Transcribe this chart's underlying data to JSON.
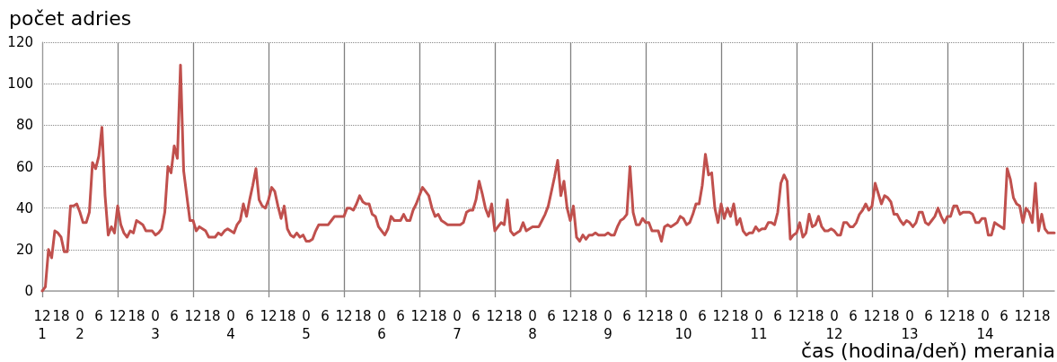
{
  "chart_data": {
    "type": "line",
    "ylabel": "počet adries",
    "xlabel": "čas (hodina/deň) merania",
    "categories": [
      "12\n1",
      null,
      null,
      null,
      null,
      null,
      "18",
      null,
      null,
      null,
      null,
      null,
      "0\n2",
      null,
      null,
      null,
      null,
      null,
      "6",
      null,
      null,
      null,
      null,
      null,
      "12",
      null,
      null,
      null,
      null,
      null,
      "18",
      null,
      null,
      null,
      null,
      null,
      "0\n3",
      null,
      null,
      null,
      null,
      null,
      "6",
      null,
      null,
      null,
      null,
      null,
      "12",
      null,
      null,
      null,
      null,
      null,
      "18",
      null,
      null,
      null,
      null,
      null,
      "0\n4",
      null,
      null,
      null,
      null,
      null,
      "6",
      null,
      null,
      null,
      null,
      null,
      "12",
      null,
      null,
      null,
      null,
      null,
      "18",
      null,
      null,
      null,
      null,
      null,
      "0\n5",
      null,
      null,
      null,
      null,
      null,
      "6",
      null,
      null,
      null,
      null,
      null,
      "12",
      null,
      null,
      null,
      null,
      null,
      "18",
      null,
      null,
      null,
      null,
      null,
      "0\n6",
      null,
      null,
      null,
      null,
      null,
      "6",
      null,
      null,
      null,
      null,
      null,
      "12",
      null,
      null,
      null,
      null,
      null,
      "18",
      null,
      null,
      null,
      null,
      null,
      "0\n7",
      null,
      null,
      null,
      null,
      null,
      "6",
      null,
      null,
      null,
      null,
      null,
      "12",
      null,
      null,
      null,
      null,
      null,
      "18",
      null,
      null,
      null,
      null,
      null,
      "0\n8",
      null,
      null,
      null,
      null,
      null,
      "6",
      null,
      null,
      null,
      null,
      null,
      "12",
      null,
      null,
      null,
      null,
      null,
      "18",
      null,
      null,
      null,
      null,
      null,
      "0\n9",
      null,
      null,
      null,
      null,
      null,
      "6",
      null,
      null,
      null,
      null,
      null,
      "12",
      null,
      null,
      null,
      null,
      null,
      "18",
      null,
      null,
      null,
      null,
      null,
      "0\n10",
      null,
      null,
      null,
      null,
      null,
      "6",
      null,
      null,
      null,
      null,
      null,
      "12",
      null,
      null,
      null,
      null,
      null,
      "18",
      null,
      null,
      null,
      null,
      null,
      "0\n11",
      null,
      null,
      null,
      null,
      null,
      "6",
      null,
      null,
      null,
      null,
      null,
      "12",
      null,
      null,
      null,
      null,
      null,
      "18",
      null,
      null,
      null,
      null,
      null,
      "0\n12",
      null,
      null,
      null,
      null,
      null,
      "6",
      null,
      null,
      null,
      null,
      null,
      "12",
      null,
      null,
      null,
      null,
      null,
      "18",
      null,
      null,
      null,
      null,
      null,
      "0\n13",
      null,
      null,
      null,
      null,
      null,
      "6",
      null,
      null,
      null,
      null,
      null,
      "12",
      null,
      null,
      null,
      null,
      null,
      "18",
      null,
      null,
      null,
      null,
      null,
      "0\n14",
      null,
      null,
      null,
      null,
      null,
      "6",
      null,
      null,
      null,
      null,
      null,
      "12",
      null,
      null,
      null,
      null,
      null,
      "18",
      null,
      null,
      null,
      null
    ],
    "ylim": [
      0,
      120
    ],
    "yticks": [
      0,
      20,
      40,
      60,
      80,
      100,
      120
    ],
    "grid": true,
    "line_style": "solid",
    "marker": "none",
    "series": [
      {
        "color": "#c0504d",
        "values": [
          0,
          2,
          20,
          16,
          29,
          28,
          26,
          19,
          19,
          41,
          41,
          42,
          38,
          33,
          33,
          38,
          62,
          59,
          65,
          79,
          46,
          27,
          31,
          28,
          41,
          32,
          28,
          26,
          29,
          28,
          34,
          33,
          32,
          29,
          29,
          29,
          27,
          28,
          30,
          38,
          60,
          57,
          70,
          64,
          109,
          58,
          46,
          34,
          34,
          29,
          31,
          30,
          29,
          26,
          26,
          26,
          28,
          27,
          29,
          30,
          29,
          28,
          32,
          34,
          42,
          36,
          44,
          51,
          59,
          44,
          41,
          40,
          44,
          50,
          48,
          41,
          35,
          41,
          30,
          27,
          26,
          28,
          26,
          27,
          24,
          24,
          25,
          29,
          32,
          32,
          32,
          32,
          34,
          36,
          36,
          36,
          36,
          40,
          40,
          39,
          42,
          46,
          43,
          42,
          42,
          37,
          36,
          31,
          29,
          27,
          30,
          36,
          34,
          34,
          34,
          37,
          34,
          34,
          39,
          42,
          46,
          50,
          48,
          46,
          40,
          36,
          37,
          34,
          33,
          32,
          32,
          32,
          32,
          32,
          33,
          38,
          39,
          39,
          44,
          53,
          47,
          40,
          36,
          42,
          29,
          31,
          33,
          32,
          44,
          29,
          27,
          28,
          29,
          33,
          29,
          30,
          31,
          31,
          31,
          34,
          37,
          41,
          48,
          55,
          63,
          46,
          53,
          40,
          34,
          41,
          26,
          24,
          27,
          25,
          27,
          27,
          28,
          27,
          27,
          27,
          28,
          27,
          27,
          31,
          34,
          35,
          37,
          60,
          38,
          32,
          32,
          35,
          33,
          33,
          29,
          29,
          29,
          24,
          31,
          32,
          31,
          32,
          33,
          36,
          35,
          32,
          33,
          37,
          42,
          42,
          51,
          66,
          56,
          57,
          40,
          33,
          42,
          35,
          40,
          36,
          42,
          32,
          35,
          29,
          27,
          28,
          28,
          31,
          29,
          30,
          30,
          33,
          33,
          32,
          38,
          52,
          56,
          53,
          25,
          27,
          28,
          33,
          26,
          28,
          37,
          31,
          32,
          36,
          31,
          29,
          29,
          30,
          29,
          27,
          27,
          33,
          33,
          31,
          31,
          33,
          37,
          39,
          42,
          39,
          41,
          52,
          47,
          42,
          46,
          45,
          43,
          37,
          37,
          34,
          32,
          34,
          33,
          31,
          33,
          38,
          38,
          33,
          32,
          34,
          36,
          40,
          36,
          33,
          36,
          36,
          41,
          41,
          37,
          38,
          38,
          38,
          37,
          33,
          33,
          35,
          35,
          27,
          27,
          33,
          32,
          31,
          30,
          59,
          54,
          45,
          42,
          41,
          33,
          40,
          38,
          33,
          52,
          29,
          37,
          30,
          28,
          28,
          28
        ]
      }
    ]
  }
}
